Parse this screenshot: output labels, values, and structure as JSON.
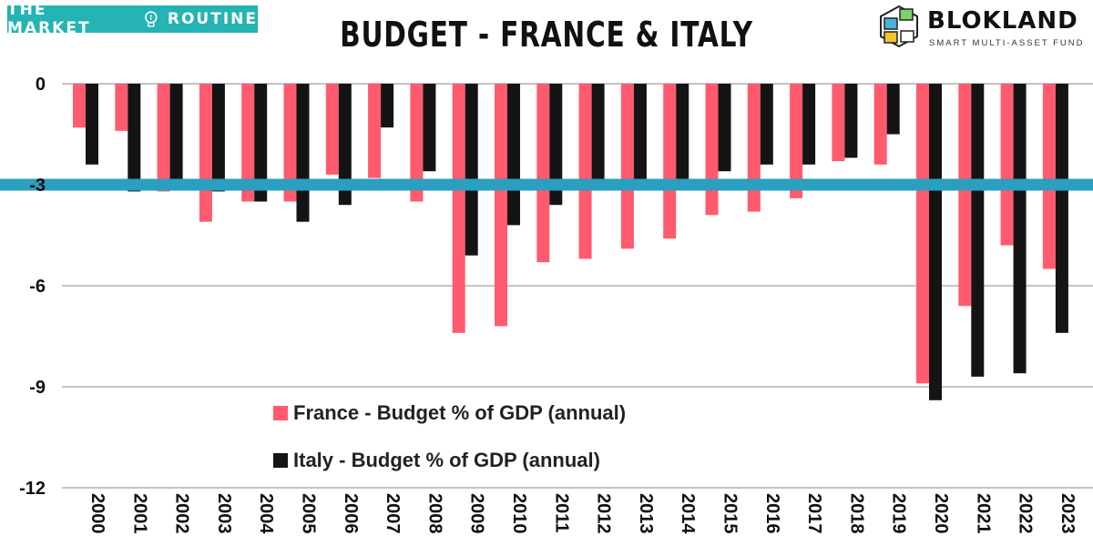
{
  "header": {
    "brand_left": "THE MARKET ROUTINE",
    "brand_left_part1": "THE MARKET",
    "brand_left_part2": "ROUTINE",
    "title": "BUDGET - FRANCE & ITALY",
    "brand_right_name": "BLOKLAND",
    "brand_right_sub": "SMART MULTI-ASSET FUND"
  },
  "colors": {
    "france": "#ff5a6e",
    "italy": "#141414",
    "threshold": "#2a9fbf",
    "brand_teal": "#25b3b3"
  },
  "chart_data": {
    "type": "bar",
    "title": "BUDGET - FRANCE & ITALY",
    "xlabel": "",
    "ylabel": "",
    "ylim": [
      -12,
      0
    ],
    "yticks": [
      0,
      -3,
      -6,
      -9,
      -12
    ],
    "categories": [
      "2000",
      "2001",
      "2002",
      "2003",
      "2004",
      "2005",
      "2006",
      "2007",
      "2008",
      "2009",
      "2010",
      "2011",
      "2012",
      "2013",
      "2014",
      "2015",
      "2016",
      "2017",
      "2018",
      "2019",
      "2020",
      "2021",
      "2022",
      "2023"
    ],
    "series": [
      {
        "name": "France - Budget % of GDP (annual)",
        "values": [
          -1.3,
          -1.4,
          -3.2,
          -4.1,
          -3.5,
          -3.5,
          -2.7,
          -2.8,
          -3.5,
          -7.4,
          -7.2,
          -5.3,
          -5.2,
          -4.9,
          -4.6,
          -3.9,
          -3.8,
          -3.4,
          -2.3,
          -2.4,
          -8.9,
          -6.6,
          -4.8,
          -5.5
        ]
      },
      {
        "name": "Italy - Budget % of GDP (annual)",
        "values": [
          -2.4,
          -3.2,
          -3.0,
          -3.2,
          -3.5,
          -4.1,
          -3.6,
          -1.3,
          -2.6,
          -5.1,
          -4.2,
          -3.6,
          -2.9,
          -2.9,
          -3.0,
          -2.6,
          -2.4,
          -2.4,
          -2.2,
          -1.5,
          -9.4,
          -8.7,
          -8.6,
          -7.4
        ]
      }
    ],
    "reference_line": {
      "value": -3
    },
    "legend": {
      "position": "lower-center"
    }
  }
}
